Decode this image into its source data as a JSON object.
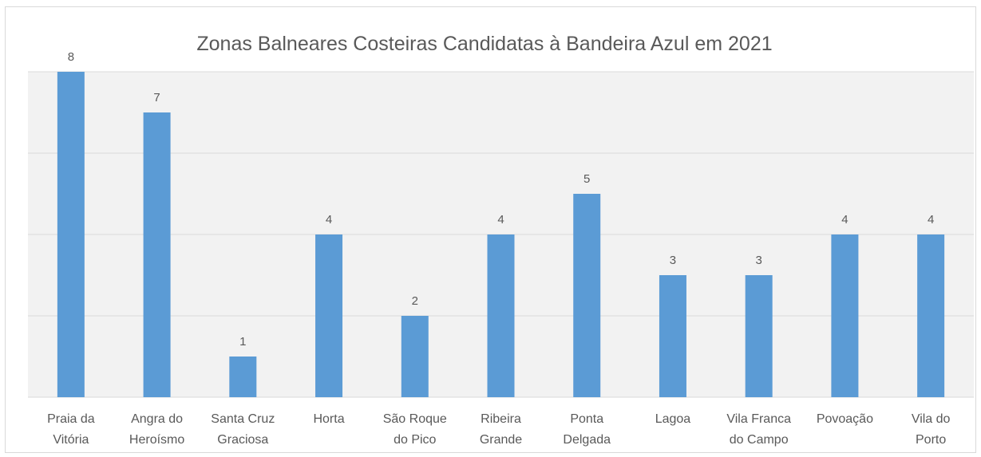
{
  "chart_data": {
    "type": "bar",
    "title": "Zonas Balneares Costeiras Candidatas à Bandeira Azul em 2021",
    "categories": [
      [
        "Praia da",
        "Vitória"
      ],
      [
        "Angra do",
        "Heroísmo"
      ],
      [
        "Santa Cruz",
        "Graciosa"
      ],
      [
        "Horta"
      ],
      [
        "São Roque",
        "do Pico"
      ],
      [
        "Ribeira",
        "Grande"
      ],
      [
        "Ponta",
        "Delgada"
      ],
      [
        "Lagoa"
      ],
      [
        "Vila Franca",
        "do Campo"
      ],
      [
        "Povoação"
      ],
      [
        "Vila do",
        "Porto"
      ]
    ],
    "values": [
      8,
      7,
      1,
      4,
      2,
      4,
      5,
      3,
      3,
      4,
      4
    ],
    "ylim": [
      0,
      8
    ],
    "grid": true,
    "plot_background": "#f2f2f2",
    "bar_color": "#5b9bd5",
    "gridline_color": "#d9d9d9",
    "label_color": "#595959"
  }
}
